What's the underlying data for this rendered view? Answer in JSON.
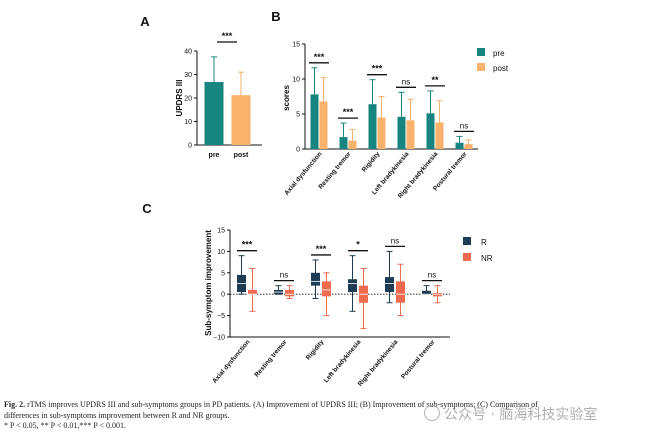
{
  "colors": {
    "teal": "#16857f",
    "orange": "#f9b26b",
    "navy": "#1e3d54",
    "coral": "#ee6b4f",
    "ink": "#111111"
  },
  "chart_data": [
    {
      "id": "A",
      "type": "bar",
      "panel_label": "A",
      "categories": [
        "pre",
        "post"
      ],
      "values": [
        26.8,
        21.2
      ],
      "errors": [
        10.7,
        9.8
      ],
      "colors": [
        "#16857f",
        "#f9b26b"
      ],
      "ylabel": "UPDRS III",
      "ylim": [
        0,
        40
      ],
      "yticks": [
        0,
        10,
        20,
        30,
        40
      ],
      "significance": [
        "***"
      ],
      "grid": false
    },
    {
      "id": "B",
      "type": "bar",
      "panel_label": "B",
      "categories": [
        "Axial dysfunction",
        "Resting tremor",
        "Rigidity",
        "Left bradykinesia",
        "Right bradykinesia",
        "Postural tremor"
      ],
      "series": [
        {
          "name": "pre",
          "values": [
            7.8,
            1.7,
            6.4,
            4.6,
            5.1,
            0.9
          ],
          "errors": [
            3.8,
            2.0,
            3.5,
            3.5,
            3.2,
            0.9
          ]
        },
        {
          "name": "post",
          "values": [
            6.8,
            1.2,
            4.5,
            4.1,
            3.8,
            0.7
          ],
          "errors": [
            3.4,
            1.6,
            3.0,
            3.0,
            3.1,
            0.6
          ]
        }
      ],
      "ylabel": "scores",
      "ylim": [
        0,
        15
      ],
      "yticks": [
        0,
        5,
        10,
        15
      ],
      "significance": [
        "***",
        "***",
        "***",
        "ns",
        "**",
        "ns"
      ],
      "legend": "top-right",
      "grid": false
    },
    {
      "id": "C",
      "type": "bar",
      "panel_label": "C",
      "categories": [
        "Axial dysfunction",
        "Resting tremor",
        "Rigidity",
        "Left bradykinesia",
        "Right bradykinesia",
        "Postural tremor"
      ],
      "series": [
        {
          "name": "R",
          "median": [
            2.5,
            0.5,
            3.0,
            2.5,
            2.5,
            0.0
          ],
          "q1": [
            0.5,
            0.0,
            2.0,
            0.5,
            0.5,
            0.0
          ],
          "q3": [
            4.5,
            1.0,
            5.0,
            3.5,
            4.0,
            0.8
          ],
          "min": [
            0.0,
            0.0,
            -1.0,
            -4.0,
            -2.0,
            0.0
          ],
          "max": [
            9.0,
            2.0,
            8.0,
            9.0,
            10.0,
            2.0
          ]
        },
        {
          "name": "NR",
          "median": [
            0.0,
            0.0,
            1.0,
            0.0,
            0.0,
            0.0
          ],
          "q1": [
            0.0,
            -0.5,
            -0.5,
            -2.0,
            -2.0,
            -0.5
          ],
          "q3": [
            1.0,
            1.0,
            3.0,
            2.0,
            3.0,
            0.3
          ],
          "min": [
            -4.0,
            -1.0,
            -5.0,
            -8.0,
            -5.0,
            -2.0
          ],
          "max": [
            6.0,
            2.0,
            5.0,
            6.0,
            7.0,
            2.0
          ]
        }
      ],
      "ylabel": "Sub-symptom improvement",
      "ylim": [
        -10,
        15
      ],
      "yticks": [
        -10,
        -5,
        0,
        5,
        10,
        15
      ],
      "significance": [
        "***",
        "ns",
        "***",
        "*",
        "ns",
        "ns"
      ],
      "legend": "top-right",
      "grid": false
    }
  ],
  "caption": {
    "fig_label": "Fig. 2.",
    "text_line1": "rTMS improves UPDRS III and sub-symptoms groups in PD patients. (A) Improvement of UPDRS III; (B) Improvement of sub-symptoms; (C) Comparison of",
    "text_line2": "differences in sub-symptoms improvement between R and NR groups.",
    "text_line3": "* P < 0.05, ** P < 0.01,*** P < 0.001."
  },
  "watermark": {
    "text": "公众号 · 脑海科技实验室",
    "icon": "wechat-icon"
  }
}
